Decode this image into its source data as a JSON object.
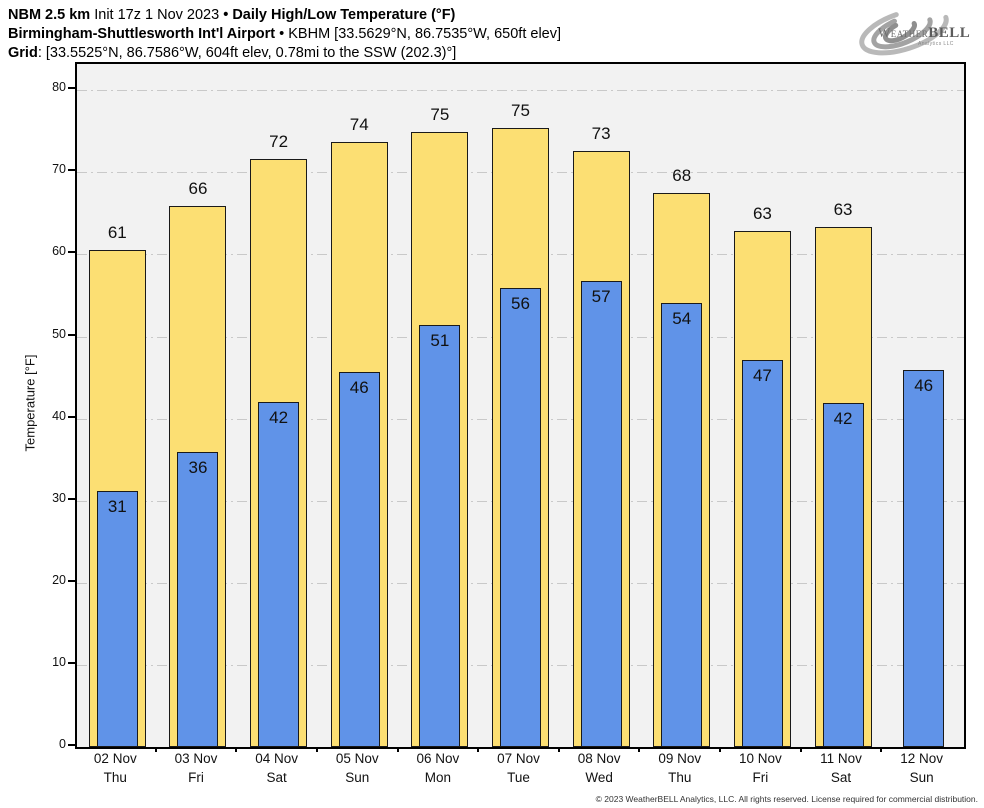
{
  "header": {
    "line1": {
      "model": "NBM 2.5 km",
      "init": "Init 17z 1 Nov 2023",
      "bullet": "•",
      "title": "Daily High/Low Temperature (°F)"
    },
    "line2": {
      "station": "Birmingham-Shuttlesworth Int'l Airport",
      "bullet": "•",
      "details": "KBHM [33.5629°N, 86.7535°W, 650ft elev]"
    },
    "line3": {
      "label": "Grid",
      "details": ": [33.5525°N, 86.7586°W, 604ft elev, 0.78mi to the SSW (202.3)°]"
    }
  },
  "logo": {
    "weather": "Weather",
    "bell": "BELL",
    "sub": "Analytics LLC"
  },
  "footer": {
    "copyright": "© 2023 WeatherBELL Analytics, LLC. All rights reserved. License required for commercial distribution."
  },
  "chart_data": {
    "type": "bar",
    "title": "Daily High/Low Temperature (°F)",
    "subtitle": "NBM 2.5 km forecast for Birmingham-Shuttlesworth Int'l Airport (KBHM)",
    "xlabel": "",
    "ylabel": "Temperature [°F]",
    "ylim": [
      0,
      83.2
    ],
    "yticks": [
      0,
      10,
      20,
      30,
      40,
      50,
      60,
      70,
      80
    ],
    "grid": true,
    "plot_background": "#f2f2f2",
    "gridline_color": "#c9c9c9",
    "categories": [
      {
        "date": "02 Nov",
        "day": "Thu"
      },
      {
        "date": "03 Nov",
        "day": "Fri"
      },
      {
        "date": "04 Nov",
        "day": "Sat"
      },
      {
        "date": "05 Nov",
        "day": "Sun"
      },
      {
        "date": "06 Nov",
        "day": "Mon"
      },
      {
        "date": "07 Nov",
        "day": "Tue"
      },
      {
        "date": "08 Nov",
        "day": "Wed"
      },
      {
        "date": "09 Nov",
        "day": "Thu"
      },
      {
        "date": "10 Nov",
        "day": "Fri"
      },
      {
        "date": "11 Nov",
        "day": "Sat"
      },
      {
        "date": "12 Nov",
        "day": "Sun"
      }
    ],
    "series": [
      {
        "name": "High",
        "color": "#FCDF73",
        "border_color": "#1a1a1a",
        "values": [
          60.6,
          65.9,
          71.6,
          73.7,
          74.9,
          75.4,
          72.6,
          67.5,
          62.8,
          63.4,
          null
        ],
        "labels": [
          "61",
          "66",
          "72",
          "74",
          "75",
          "75",
          "73",
          "68",
          "63",
          "63",
          ""
        ]
      },
      {
        "name": "Low",
        "color": "#6093E8",
        "border_color": "#1a1a1a",
        "values": [
          31.2,
          35.9,
          42.0,
          45.7,
          51.4,
          55.9,
          56.8,
          54.1,
          47.1,
          41.9,
          45.9
        ],
        "labels": [
          "31",
          "36",
          "42",
          "46",
          "51",
          "56",
          "57",
          "54",
          "47",
          "42",
          "46"
        ]
      }
    ]
  }
}
